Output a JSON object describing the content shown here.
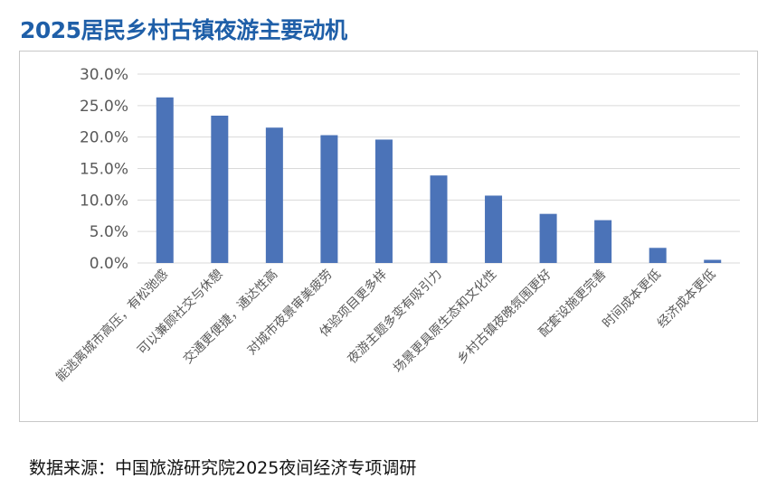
{
  "page": {
    "title": "2025居民乡村古镇夜游主要动机",
    "source": "数据来源：中国旅游研究院2025夜间经济专项调研"
  },
  "colors": {
    "title": "#1f5fa8",
    "bar": "#4b73b8",
    "grid": "#d9d9d9",
    "axis_text": "#595959"
  },
  "chart_data": {
    "type": "bar",
    "categories": [
      "能逃离城市高压，有松弛感",
      "可以兼顾社交与休憩",
      "交通更便捷，通达性高",
      "对城市夜景审美疲劳",
      "体验项目更多样",
      "夜游主题多变有吸引力",
      "场景更具原生态和文化性",
      "乡村古镇夜晚氛围更好",
      "配套设施更完善",
      "时间成本更低",
      "经济成本更低"
    ],
    "values": [
      26.3,
      23.4,
      21.5,
      20.3,
      19.6,
      13.9,
      10.7,
      7.8,
      6.8,
      2.4,
      0.5
    ],
    "ylim": [
      0,
      30
    ],
    "yticks": [
      "0.0%",
      "5.0%",
      "10.0%",
      "15.0%",
      "20.0%",
      "25.0%",
      "30.0%"
    ],
    "value_format": "percent",
    "grid": true,
    "legend": "none"
  }
}
